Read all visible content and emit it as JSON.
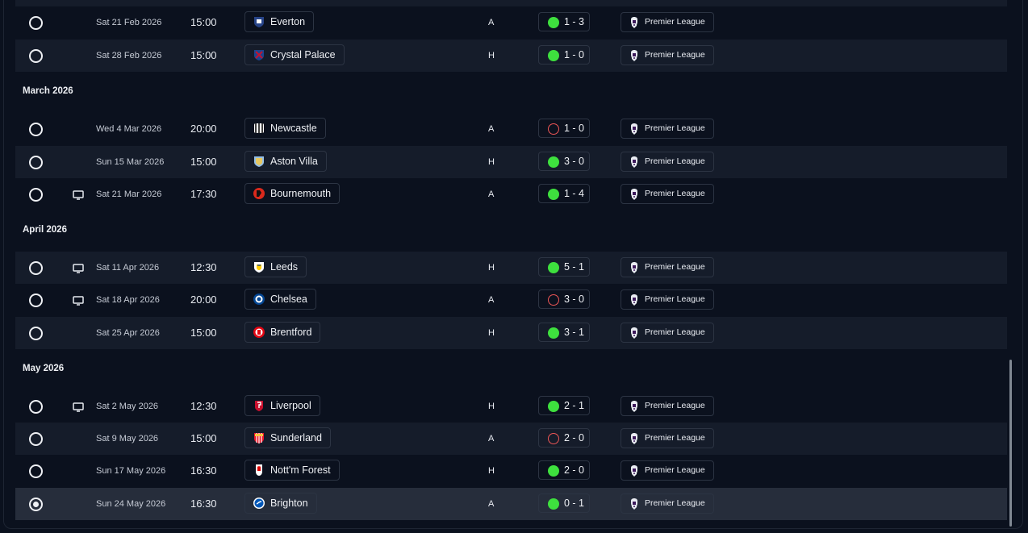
{
  "competition_label": "Premier League",
  "months": [
    {
      "label": "",
      "fixtures": [
        {
          "date": "Sat 21 Feb 2026",
          "time": "15:00",
          "opponent": "Everton",
          "crest": "everton-crest-icon",
          "venue": "A",
          "outcome": "win",
          "score": "1 - 3",
          "tv": false,
          "selected": false
        },
        {
          "date": "Sat 28 Feb 2026",
          "time": "15:00",
          "opponent": "Crystal Palace",
          "crest": "crystal-palace-crest-icon",
          "venue": "H",
          "outcome": "win",
          "score": "1 - 0",
          "tv": false,
          "selected": false
        }
      ]
    },
    {
      "label": "March 2026",
      "fixtures": [
        {
          "date": "Wed 4 Mar 2026",
          "time": "20:00",
          "opponent": "Newcastle",
          "crest": "newcastle-crest-icon",
          "venue": "A",
          "outcome": "loss",
          "score": "1 - 0",
          "tv": false,
          "selected": false
        },
        {
          "date": "Sun 15 Mar 2026",
          "time": "15:00",
          "opponent": "Aston Villa",
          "crest": "aston-villa-crest-icon",
          "venue": "H",
          "outcome": "win",
          "score": "3 - 0",
          "tv": false,
          "selected": false
        },
        {
          "date": "Sat 21 Mar 2026",
          "time": "17:30",
          "opponent": "Bournemouth",
          "crest": "bournemouth-crest-icon",
          "venue": "A",
          "outcome": "win",
          "score": "1 - 4",
          "tv": true,
          "selected": false
        }
      ]
    },
    {
      "label": "April 2026",
      "fixtures": [
        {
          "date": "Sat 11 Apr 2026",
          "time": "12:30",
          "opponent": "Leeds",
          "crest": "leeds-crest-icon",
          "venue": "H",
          "outcome": "win",
          "score": "5 - 1",
          "tv": true,
          "selected": false
        },
        {
          "date": "Sat 18 Apr 2026",
          "time": "20:00",
          "opponent": "Chelsea",
          "crest": "chelsea-crest-icon",
          "venue": "A",
          "outcome": "loss",
          "score": "3 - 0",
          "tv": true,
          "selected": false
        },
        {
          "date": "Sat 25 Apr 2026",
          "time": "15:00",
          "opponent": "Brentford",
          "crest": "brentford-crest-icon",
          "venue": "H",
          "outcome": "win",
          "score": "3 - 1",
          "tv": false,
          "selected": false
        }
      ]
    },
    {
      "label": "May 2026",
      "fixtures": [
        {
          "date": "Sat 2 May 2026",
          "time": "12:30",
          "opponent": "Liverpool",
          "crest": "liverpool-crest-icon",
          "venue": "H",
          "outcome": "win",
          "score": "2 - 1",
          "tv": true,
          "selected": false
        },
        {
          "date": "Sat 9 May 2026",
          "time": "15:00",
          "opponent": "Sunderland",
          "crest": "sunderland-crest-icon",
          "venue": "A",
          "outcome": "loss",
          "score": "2 - 0",
          "tv": false,
          "selected": false
        },
        {
          "date": "Sun 17 May 2026",
          "time": "16:30",
          "opponent": "Nott'm Forest",
          "crest": "nottm-forest-crest-icon",
          "venue": "H",
          "outcome": "win",
          "score": "2 - 0",
          "tv": false,
          "selected": false
        },
        {
          "date": "Sun 24 May 2026",
          "time": "16:30",
          "opponent": "Brighton",
          "crest": "brighton-crest-icon",
          "venue": "A",
          "outcome": "win",
          "score": "0 - 1",
          "tv": false,
          "selected": true
        }
      ]
    }
  ],
  "colors": {
    "background": "#0b111e",
    "row_alt": "#151c2a",
    "row_selected": "#262d3b",
    "win": "#3ee03e",
    "loss": "#ee5656"
  }
}
